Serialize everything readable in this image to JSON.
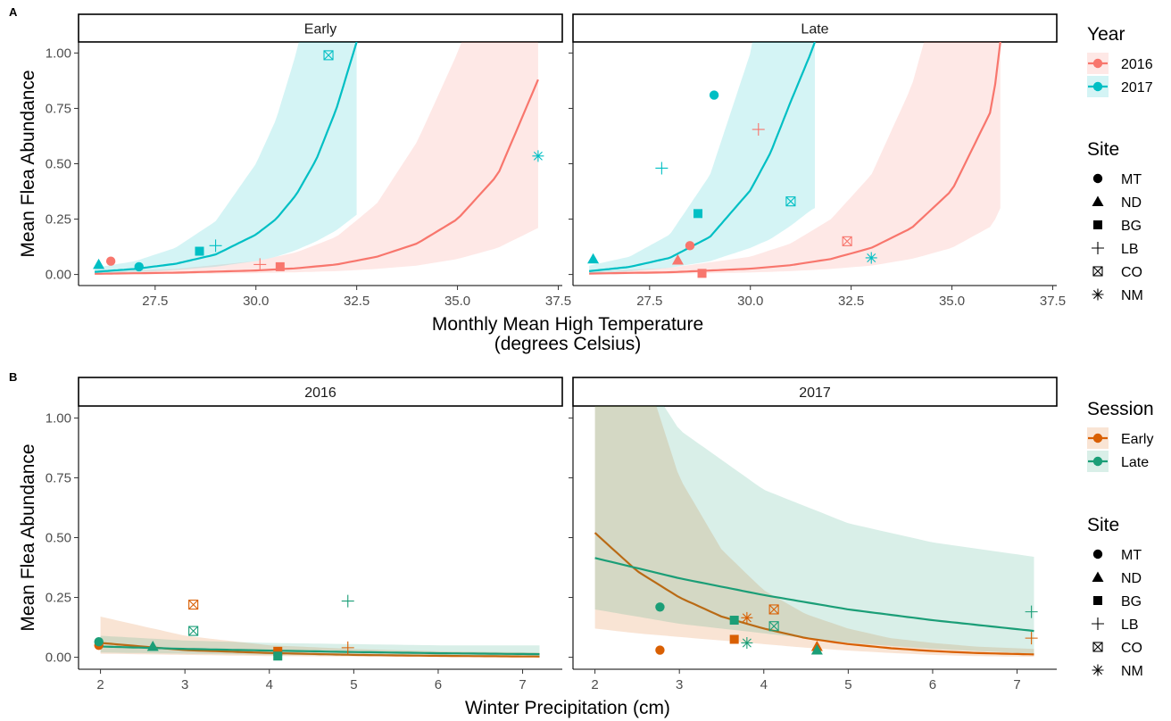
{
  "figure": {
    "panel_a_tag": "A",
    "panel_b_tag": "B"
  },
  "colors": {
    "2016": "#F8766D",
    "2017": "#00BFC4",
    "Early": "#D95F02",
    "Late": "#1B9E77"
  },
  "chart_data": [
    {
      "id": "A",
      "type": "scatter",
      "facets": [
        "Early",
        "Late"
      ],
      "xlabel": "Monthly Mean High Temperature",
      "xlabel_line2": "(degrees Celsius)",
      "ylabel": "Mean Flea Abundance",
      "xlim": [
        25.6,
        37.6
      ],
      "ylim": [
        -0.05,
        1.05
      ],
      "xticks": [
        27.5,
        30.0,
        32.5,
        35.0,
        37.5
      ],
      "xtick_labels": [
        "27.5",
        "30.0",
        "32.5",
        "35.0",
        "37.5"
      ],
      "yticks": [
        0.0,
        0.25,
        0.5,
        0.75,
        1.0
      ],
      "ytick_labels": [
        "0.00",
        "0.25",
        "0.50",
        "0.75",
        "1.00"
      ],
      "color_legend": {
        "title": "Year",
        "entries": [
          "2016",
          "2017"
        ]
      },
      "shape_legend": {
        "title": "Site",
        "entries": [
          "MT",
          "ND",
          "BG",
          "LB",
          "CO",
          "NM"
        ]
      },
      "curves": [
        {
          "facet": "Early",
          "group": "2016",
          "x": [
            26.0,
            28.0,
            30.0,
            31.0,
            32.0,
            33.0,
            34.0,
            35.0,
            36.0,
            37.0
          ],
          "y": [
            0.003,
            0.008,
            0.018,
            0.028,
            0.045,
            0.08,
            0.14,
            0.25,
            0.45,
            0.88
          ],
          "lower": [
            0.0,
            0.002,
            0.006,
            0.01,
            0.015,
            0.025,
            0.04,
            0.07,
            0.12,
            0.21
          ],
          "upper": [
            0.01,
            0.025,
            0.06,
            0.1,
            0.17,
            0.32,
            0.6,
            1.0,
            1.5,
            2.0
          ]
        },
        {
          "facet": "Early",
          "group": "2017",
          "x": [
            26.0,
            27.0,
            28.0,
            29.0,
            30.0,
            30.5,
            31.0,
            31.5,
            32.0,
            32.5
          ],
          "y": [
            0.012,
            0.025,
            0.048,
            0.09,
            0.18,
            0.25,
            0.36,
            0.52,
            0.75,
            1.05
          ],
          "lower": [
            0.005,
            0.01,
            0.02,
            0.035,
            0.06,
            0.08,
            0.11,
            0.15,
            0.2,
            0.27
          ],
          "upper": [
            0.03,
            0.06,
            0.12,
            0.24,
            0.5,
            0.7,
            1.0,
            1.4,
            2.0,
            2.8
          ]
        },
        {
          "facet": "Late",
          "group": "2016",
          "x": [
            26.0,
            28.0,
            30.0,
            31.0,
            32.0,
            33.0,
            34.0,
            35.0,
            36.0,
            36.2
          ],
          "y": [
            0.004,
            0.01,
            0.026,
            0.042,
            0.07,
            0.12,
            0.21,
            0.38,
            0.75,
            1.05
          ],
          "lower": [
            0.0,
            0.003,
            0.009,
            0.015,
            0.025,
            0.04,
            0.07,
            0.12,
            0.22,
            0.3
          ],
          "upper": [
            0.012,
            0.03,
            0.08,
            0.14,
            0.25,
            0.45,
            0.85,
            1.5,
            2.5,
            3.0
          ]
        },
        {
          "facet": "Late",
          "group": "2017",
          "x": [
            26.0,
            27.0,
            28.0,
            29.0,
            30.0,
            30.5,
            31.0,
            31.5,
            31.6
          ],
          "y": [
            0.015,
            0.034,
            0.075,
            0.17,
            0.38,
            0.55,
            0.78,
            1.0,
            1.05
          ],
          "lower": [
            0.005,
            0.015,
            0.03,
            0.06,
            0.12,
            0.16,
            0.22,
            0.29,
            0.3
          ],
          "upper": [
            0.04,
            0.08,
            0.18,
            0.45,
            1.0,
            1.5,
            2.1,
            2.8,
            3.0
          ]
        }
      ],
      "points": [
        {
          "facet": "Early",
          "group": "2016",
          "site": "MT",
          "x": 26.4,
          "y": 0.06
        },
        {
          "facet": "Early",
          "group": "2016",
          "site": "LB",
          "x": 30.1,
          "y": 0.045
        },
        {
          "facet": "Early",
          "group": "2016",
          "site": "BG",
          "x": 30.6,
          "y": 0.035
        },
        {
          "facet": "Early",
          "group": "2017",
          "site": "ND",
          "x": 26.1,
          "y": 0.045
        },
        {
          "facet": "Early",
          "group": "2017",
          "site": "MT",
          "x": 27.1,
          "y": 0.035
        },
        {
          "facet": "Early",
          "group": "2017",
          "site": "BG",
          "x": 28.6,
          "y": 0.105
        },
        {
          "facet": "Early",
          "group": "2017",
          "site": "LB",
          "x": 29.0,
          "y": 0.13
        },
        {
          "facet": "Early",
          "group": "2017",
          "site": "CO",
          "x": 31.8,
          "y": 0.99
        },
        {
          "facet": "Early",
          "group": "2017",
          "site": "NM",
          "x": 37.0,
          "y": 0.535
        },
        {
          "facet": "Late",
          "group": "2016",
          "site": "ND",
          "x": 28.2,
          "y": 0.065
        },
        {
          "facet": "Late",
          "group": "2016",
          "site": "MT",
          "x": 28.5,
          "y": 0.13
        },
        {
          "facet": "Late",
          "group": "2016",
          "site": "BG",
          "x": 28.8,
          "y": 0.005
        },
        {
          "facet": "Late",
          "group": "2016",
          "site": "LB",
          "x": 30.2,
          "y": 0.655
        },
        {
          "facet": "Late",
          "group": "2016",
          "site": "CO",
          "x": 32.4,
          "y": 0.15
        },
        {
          "facet": "Late",
          "group": "2017",
          "site": "ND",
          "x": 26.1,
          "y": 0.07
        },
        {
          "facet": "Late",
          "group": "2017",
          "site": "LB",
          "x": 27.8,
          "y": 0.48
        },
        {
          "facet": "Late",
          "group": "2017",
          "site": "BG",
          "x": 28.7,
          "y": 0.275
        },
        {
          "facet": "Late",
          "group": "2017",
          "site": "MT",
          "x": 29.1,
          "y": 0.81
        },
        {
          "facet": "Late",
          "group": "2017",
          "site": "CO",
          "x": 31.0,
          "y": 0.33
        },
        {
          "facet": "Late",
          "group": "2017",
          "site": "NM",
          "x": 33.0,
          "y": 0.075
        }
      ]
    },
    {
      "id": "B",
      "type": "scatter",
      "facets": [
        "2016",
        "2017"
      ],
      "xlabel": "Winter Precipitation (cm)",
      "ylabel": "Mean Flea Abundance",
      "xlim": [
        1.74,
        7.47
      ],
      "ylim": [
        -0.05,
        1.05
      ],
      "xticks": [
        2,
        3,
        4,
        5,
        6,
        7
      ],
      "xtick_labels": [
        "2",
        "3",
        "4",
        "5",
        "6",
        "7"
      ],
      "yticks": [
        0.0,
        0.25,
        0.5,
        0.75,
        1.0
      ],
      "ytick_labels": [
        "0.00",
        "0.25",
        "0.50",
        "0.75",
        "1.00"
      ],
      "color_legend": {
        "title": "Session",
        "entries": [
          "Early",
          "Late"
        ]
      },
      "shape_legend": {
        "title": "Site",
        "entries": [
          "MT",
          "ND",
          "BG",
          "LB",
          "CO",
          "NM"
        ]
      },
      "curves": [
        {
          "facet": "2016",
          "group": "Early",
          "x": [
            2.0,
            3.0,
            4.0,
            5.0,
            6.0,
            7.2
          ],
          "y": [
            0.06,
            0.03,
            0.018,
            0.01,
            0.006,
            0.003
          ],
          "lower": [
            0.015,
            0.01,
            0.005,
            0.003,
            0.001,
            0.0
          ],
          "upper": [
            0.17,
            0.09,
            0.05,
            0.035,
            0.025,
            0.02
          ]
        },
        {
          "facet": "2016",
          "group": "Late",
          "x": [
            2.0,
            3.0,
            4.0,
            5.0,
            6.0,
            7.2
          ],
          "y": [
            0.045,
            0.035,
            0.028,
            0.022,
            0.017,
            0.013
          ],
          "lower": [
            0.02,
            0.015,
            0.01,
            0.006,
            0.004,
            0.002
          ],
          "upper": [
            0.09,
            0.07,
            0.06,
            0.055,
            0.05,
            0.05
          ]
        },
        {
          "facet": "2017",
          "group": "Early",
          "x": [
            2.0,
            2.5,
            3.0,
            3.5,
            4.0,
            4.5,
            5.0,
            5.5,
            6.0,
            6.5,
            7.2
          ],
          "y": [
            0.52,
            0.36,
            0.25,
            0.17,
            0.12,
            0.08,
            0.055,
            0.038,
            0.026,
            0.018,
            0.012
          ],
          "lower": [
            0.12,
            0.1,
            0.085,
            0.07,
            0.055,
            0.04,
            0.028,
            0.018,
            0.01,
            0.005,
            0.002
          ],
          "upper": [
            2.2,
            1.3,
            0.75,
            0.45,
            0.28,
            0.18,
            0.12,
            0.08,
            0.06,
            0.045,
            0.035
          ]
        },
        {
          "facet": "2017",
          "group": "Late",
          "x": [
            2.0,
            3.0,
            4.0,
            5.0,
            6.0,
            7.2
          ],
          "y": [
            0.415,
            0.33,
            0.26,
            0.2,
            0.155,
            0.11
          ],
          "lower": [
            0.2,
            0.14,
            0.1,
            0.06,
            0.035,
            0.015
          ],
          "upper": [
            1.5,
            0.95,
            0.7,
            0.56,
            0.48,
            0.42
          ]
        }
      ],
      "points": [
        {
          "facet": "2016",
          "group": "Early",
          "site": "MT",
          "x": 1.98,
          "y": 0.05
        },
        {
          "facet": "2016",
          "group": "Early",
          "site": "CO",
          "x": 3.1,
          "y": 0.22
        },
        {
          "facet": "2016",
          "group": "Early",
          "site": "BG",
          "x": 4.1,
          "y": 0.025
        },
        {
          "facet": "2016",
          "group": "Early",
          "site": "LB",
          "x": 4.93,
          "y": 0.04
        },
        {
          "facet": "2016",
          "group": "Late",
          "site": "MT",
          "x": 1.98,
          "y": 0.065
        },
        {
          "facet": "2016",
          "group": "Late",
          "site": "ND",
          "x": 2.62,
          "y": 0.045
        },
        {
          "facet": "2016",
          "group": "Late",
          "site": "CO",
          "x": 3.1,
          "y": 0.11
        },
        {
          "facet": "2016",
          "group": "Late",
          "site": "BG",
          "x": 4.1,
          "y": 0.005
        },
        {
          "facet": "2016",
          "group": "Late",
          "site": "LB",
          "x": 4.93,
          "y": 0.235
        },
        {
          "facet": "2017",
          "group": "Early",
          "site": "MT",
          "x": 2.77,
          "y": 0.03
        },
        {
          "facet": "2017",
          "group": "Early",
          "site": "BG",
          "x": 3.65,
          "y": 0.075
        },
        {
          "facet": "2017",
          "group": "Early",
          "site": "NM",
          "x": 3.8,
          "y": 0.165
        },
        {
          "facet": "2017",
          "group": "Early",
          "site": "CO",
          "x": 4.12,
          "y": 0.2
        },
        {
          "facet": "2017",
          "group": "Early",
          "site": "ND",
          "x": 4.63,
          "y": 0.045
        },
        {
          "facet": "2017",
          "group": "Early",
          "site": "LB",
          "x": 7.17,
          "y": 0.08
        },
        {
          "facet": "2017",
          "group": "Late",
          "site": "MT",
          "x": 2.77,
          "y": 0.21
        },
        {
          "facet": "2017",
          "group": "Late",
          "site": "BG",
          "x": 3.65,
          "y": 0.155
        },
        {
          "facet": "2017",
          "group": "Late",
          "site": "NM",
          "x": 3.8,
          "y": 0.06
        },
        {
          "facet": "2017",
          "group": "Late",
          "site": "CO",
          "x": 4.12,
          "y": 0.13
        },
        {
          "facet": "2017",
          "group": "Late",
          "site": "ND",
          "x": 4.63,
          "y": 0.03
        },
        {
          "facet": "2017",
          "group": "Late",
          "site": "LB",
          "x": 7.17,
          "y": 0.19
        }
      ]
    }
  ]
}
